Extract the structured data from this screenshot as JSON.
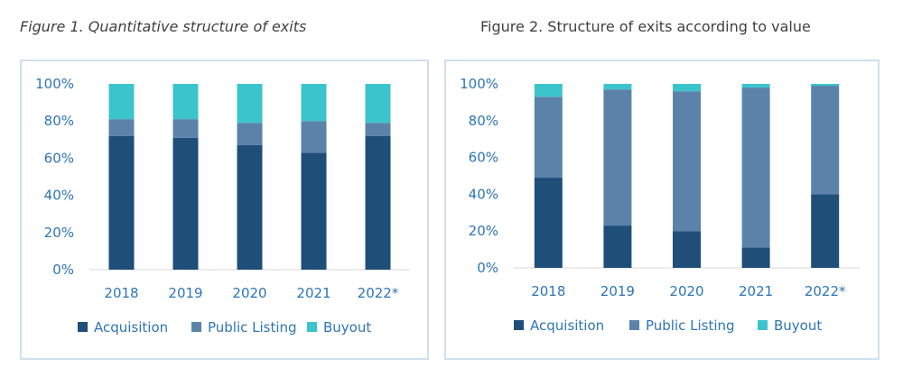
{
  "figures": {
    "fig1_title": "Figure 1. Quantitative structure of exits",
    "fig2_title": "Figure 2. Structure of exits according to value"
  },
  "colors": {
    "acquisition": "#1f4e79",
    "public_listing": "#5b83aa",
    "buyout": "#3cc4cc",
    "tick_text": "#2e75b6",
    "frame_border": "#cfe0ee",
    "axis_line": "#d9d9d9"
  },
  "chart_data": [
    {
      "type": "bar",
      "stacked": true,
      "title": "Figure 1. Quantitative structure of exits",
      "categories": [
        "2018",
        "2019",
        "2020",
        "2021",
        "2022*"
      ],
      "series": [
        {
          "name": "Acquisition",
          "values": [
            72,
            71,
            67,
            63,
            72
          ]
        },
        {
          "name": "Public Listing",
          "values": [
            9,
            10,
            12,
            17,
            7
          ]
        },
        {
          "name": "Buyout",
          "values": [
            19,
            19,
            21,
            20,
            21
          ]
        }
      ],
      "ylim": [
        0,
        100
      ],
      "yticks": [
        "0%",
        "20%",
        "40%",
        "60%",
        "80%",
        "100%"
      ],
      "legend": "bottom",
      "grid": false
    },
    {
      "type": "bar",
      "stacked": true,
      "title": "Figure 2. Structure of exits according to value",
      "categories": [
        "2018",
        "2019",
        "2020",
        "2021",
        "2022*"
      ],
      "series": [
        {
          "name": "Acquisition",
          "values": [
            49,
            23,
            20,
            11,
            40
          ]
        },
        {
          "name": "Public Listing",
          "values": [
            44,
            74,
            76,
            87,
            59
          ]
        },
        {
          "name": "Buyout",
          "values": [
            7,
            3,
            4,
            2,
            1
          ]
        }
      ],
      "ylim": [
        0,
        100
      ],
      "yticks": [
        "0%",
        "20%",
        "40%",
        "60%",
        "80%",
        "100%"
      ],
      "legend": "bottom",
      "grid": false
    }
  ]
}
